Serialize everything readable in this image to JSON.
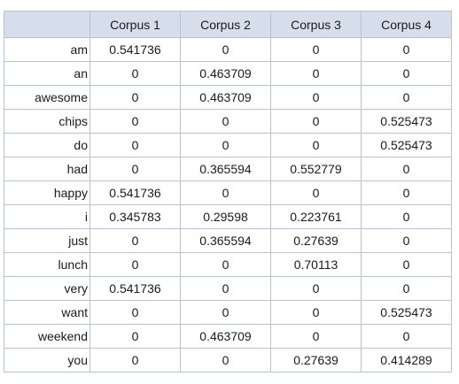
{
  "table": {
    "columns": [
      "Corpus 1",
      "Corpus 2",
      "Corpus 3",
      "Corpus 4"
    ],
    "rows": [
      {
        "label": "am",
        "values": [
          "0.541736",
          "0",
          "0",
          "0"
        ]
      },
      {
        "label": "an",
        "values": [
          "0",
          "0.463709",
          "0",
          "0"
        ]
      },
      {
        "label": "awesome",
        "values": [
          "0",
          "0.463709",
          "0",
          "0"
        ]
      },
      {
        "label": "chips",
        "values": [
          "0",
          "0",
          "0",
          "0.525473"
        ]
      },
      {
        "label": "do",
        "values": [
          "0",
          "0",
          "0",
          "0.525473"
        ]
      },
      {
        "label": "had",
        "values": [
          "0",
          "0.365594",
          "0.552779",
          "0"
        ]
      },
      {
        "label": "happy",
        "values": [
          "0.541736",
          "0",
          "0",
          "0"
        ]
      },
      {
        "label": "i",
        "values": [
          "0.345783",
          "0.29598",
          "0.223761",
          "0"
        ]
      },
      {
        "label": "just",
        "values": [
          "0",
          "0.365594",
          "0.27639",
          "0"
        ]
      },
      {
        "label": "lunch",
        "values": [
          "0",
          "0",
          "0.70113",
          "0"
        ]
      },
      {
        "label": "very",
        "values": [
          "0.541736",
          "0",
          "0",
          "0"
        ]
      },
      {
        "label": "want",
        "values": [
          "0",
          "0",
          "0",
          "0.525473"
        ]
      },
      {
        "label": "weekend",
        "values": [
          "0",
          "0.463709",
          "0",
          "0"
        ]
      },
      {
        "label": "you",
        "values": [
          "0",
          "0",
          "0.27639",
          "0.414289"
        ]
      }
    ]
  },
  "colors": {
    "header_bg": "#d6deec",
    "border": "#b6c2d6",
    "text": "#1a1a1a"
  }
}
